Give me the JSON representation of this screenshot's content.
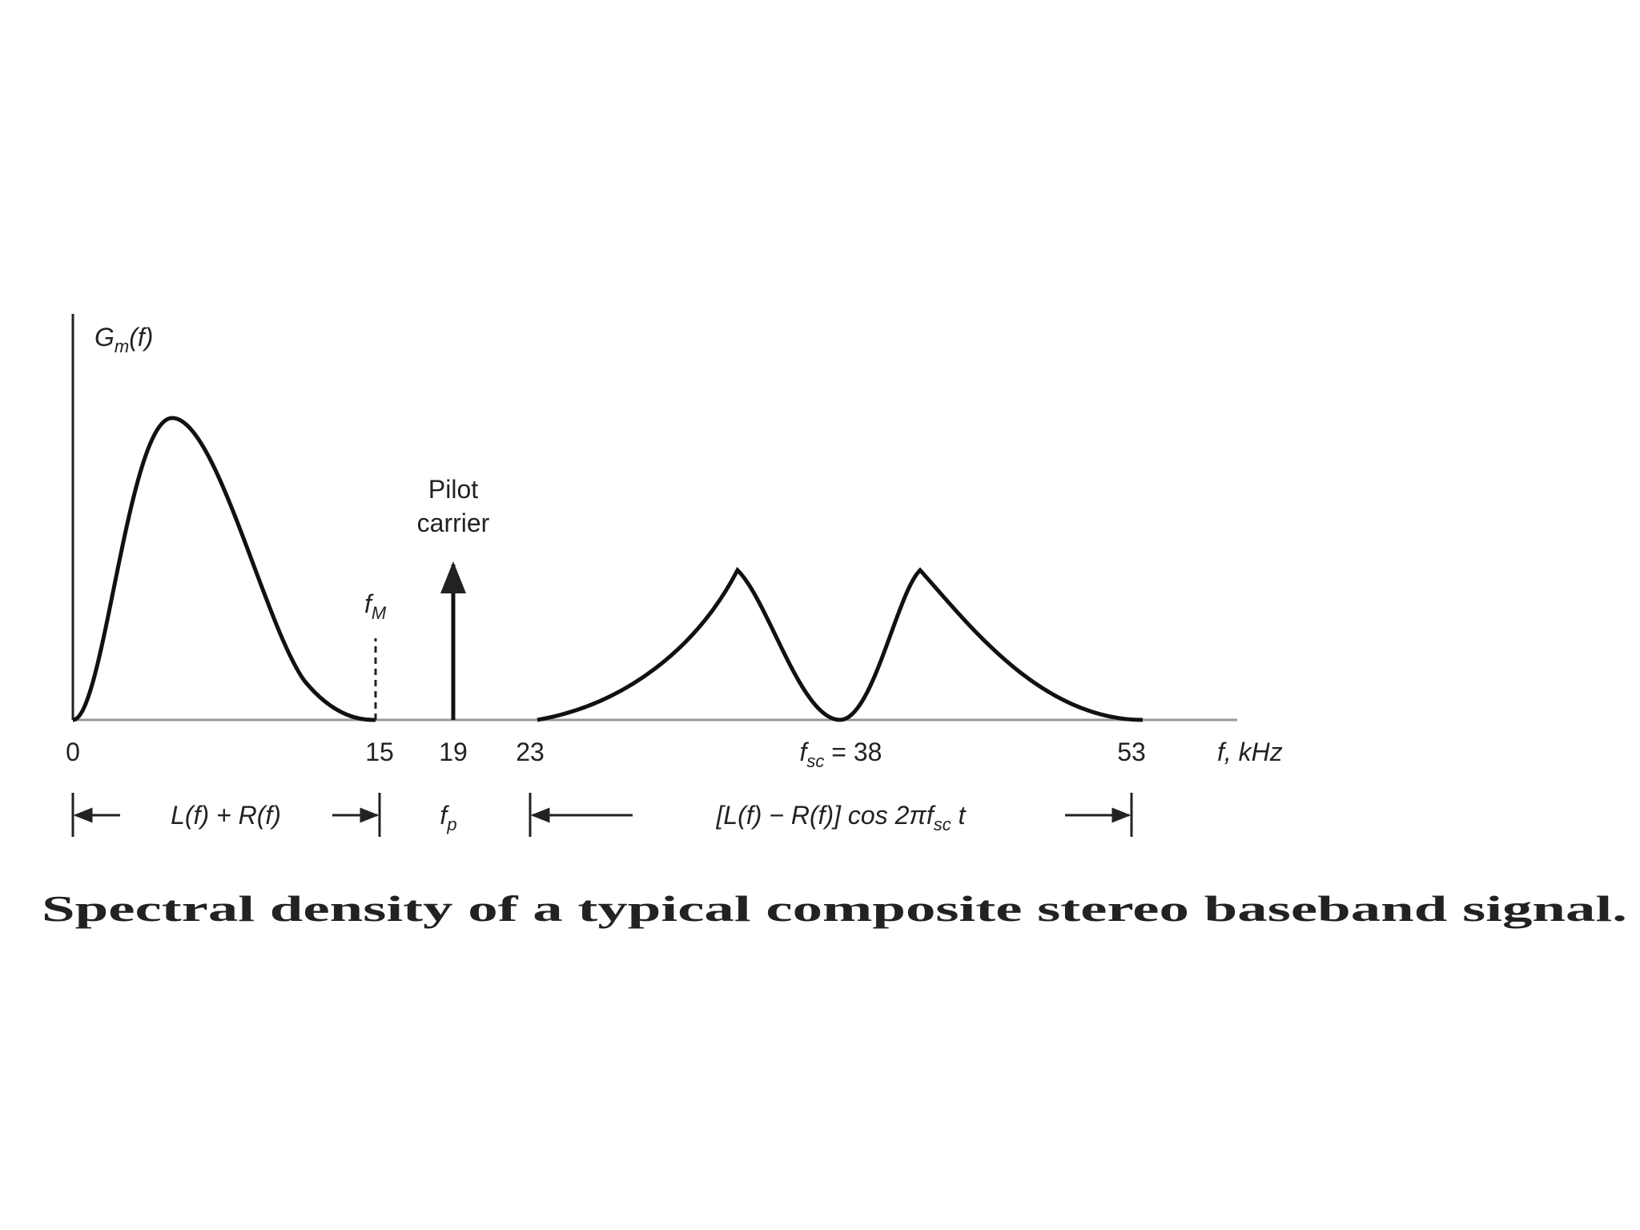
{
  "y_axis_label": {
    "main": "G",
    "sub": "m",
    "tail": "(f)"
  },
  "x_axis_label": "f, kHz",
  "ticks": [
    {
      "text": "0"
    },
    {
      "text": "15"
    },
    {
      "text": "19"
    },
    {
      "text": "23"
    },
    {
      "main": "f",
      "sub": "sc",
      "tail": " = 38"
    },
    {
      "text": "53"
    }
  ],
  "fM_marker": {
    "main": "f",
    "sub": "M"
  },
  "pilot_label": [
    "Pilot",
    "carrier"
  ],
  "bands": [
    {
      "label": "L(f) + R(f)"
    },
    {
      "main": "f",
      "sub": "p"
    },
    {
      "main": "[L(f) − R(f)] cos 2π",
      "italic": "f",
      "sub": "sc",
      "tail": " t"
    }
  ],
  "caption": "Spectral density of a typical composite stereo baseband signal."
}
